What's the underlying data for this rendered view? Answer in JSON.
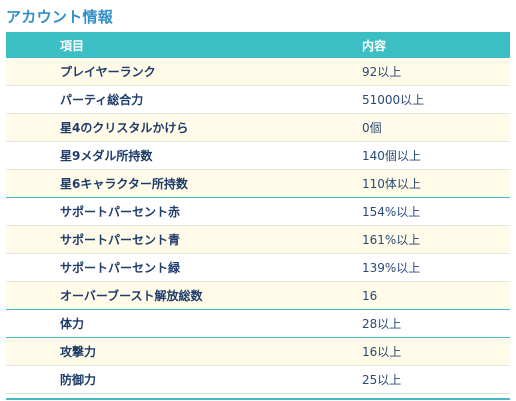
{
  "section": {
    "title": "アカウント情報"
  },
  "table": {
    "headers": {
      "item": "項目",
      "value": "内容"
    },
    "rows": [
      {
        "item": "プレイヤーランク",
        "value": "92以上"
      },
      {
        "item": "パーティ総合力",
        "value": "51000以上"
      },
      {
        "item": "星4のクリスタルかけら",
        "value": "0個"
      },
      {
        "item": "星9メダル所持数",
        "value": "140個以上"
      },
      {
        "item": "星6キャラクター所持数",
        "value": "110体以上"
      },
      {
        "item": "サポートパーセント赤",
        "value": "154%以上"
      },
      {
        "item": "サポートパーセント青",
        "value": "161%以上"
      },
      {
        "item": "サポートパーセント緑",
        "value": "139%以上"
      },
      {
        "item": "オーバーブースト解放総数",
        "value": "16"
      },
      {
        "item": "体力",
        "value": "28以上"
      },
      {
        "item": "攻撃力",
        "value": "16以上"
      },
      {
        "item": "防御力",
        "value": "25以上"
      }
    ]
  },
  "colors": {
    "title": "#2f8fc8",
    "header_bg": "#3bbfc4",
    "row_odd": "#fffbe8",
    "row_even": "#ffffff",
    "rule": "#46bdc4"
  }
}
